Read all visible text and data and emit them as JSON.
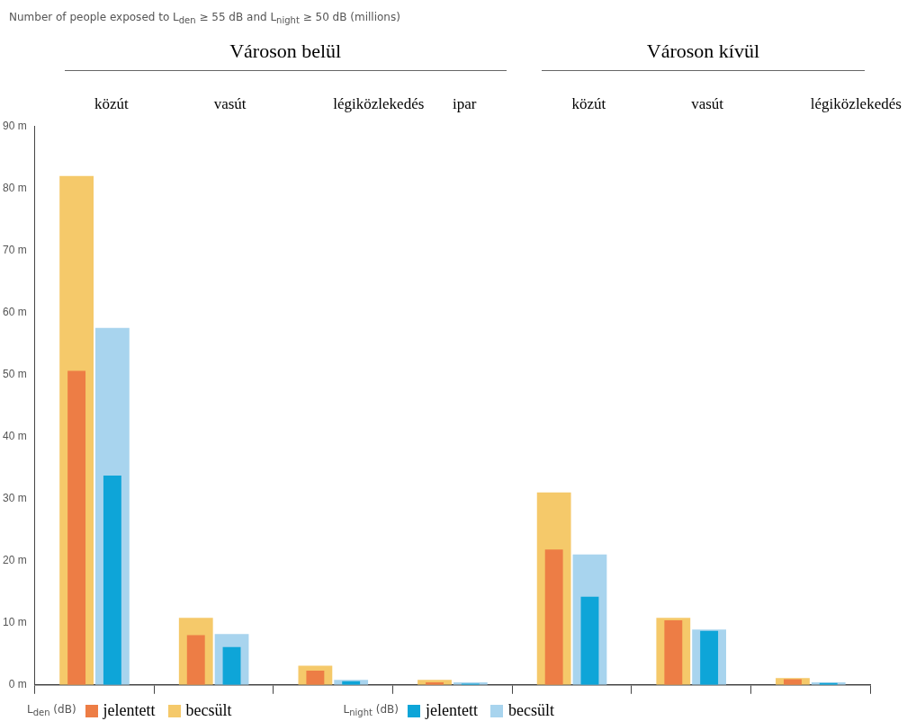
{
  "chart_data": {
    "type": "bar",
    "title": "Number of people exposed to L$_{den}$ ≥ 55 dB and L$_{night}$ ≥ 50 dB (millions)",
    "categories": [
      "közút",
      "vasút",
      "légiközlekedés",
      "ipar",
      "közút",
      "vasút",
      "légiközlekedés"
    ],
    "series": [
      {
        "name": "jelentett",
        "color": "#ed7d45",
        "values": [
          50.6,
          8.0,
          2.3,
          0.4,
          21.8,
          10.4,
          0.9
        ]
      },
      {
        "name": "becsült",
        "color": "#f5c96a",
        "values": [
          82.0,
          10.8,
          3.1,
          0.8,
          31.0,
          10.8,
          1.1
        ]
      },
      {
        "name": "jelentett",
        "color": "#0ea5d8",
        "values": [
          33.7,
          6.1,
          0.6,
          0.2,
          14.2,
          8.7,
          0.3
        ]
      },
      {
        "name": "becsült",
        "color": "#a8d4ee",
        "values": [
          57.5,
          8.2,
          0.8,
          0.4,
          21.0,
          8.9,
          0.4
        ]
      }
    ],
    "annotations": [
      "Városon belül",
      "Városon kívül",
      "L$_{den}$ (dB)",
      "L$_{night}$ (dB)"
    ],
    "ylim": [
      0,
      90
    ],
    "yticks": [
      {
        "value": 0,
        "label": "0 m"
      },
      {
        "value": 10,
        "label": "10 m"
      },
      {
        "value": 20,
        "label": "20 m"
      },
      {
        "value": 30,
        "label": "30 m"
      },
      {
        "value": 40,
        "label": "40 m"
      },
      {
        "value": 50,
        "label": "50 m"
      },
      {
        "value": 60,
        "label": "60 m"
      },
      {
        "value": 70,
        "label": "70 m"
      },
      {
        "value": 80,
        "label": "80 m"
      },
      {
        "value": 90,
        "label": "90 m"
      }
    ],
    "grid": false,
    "legend": "bottom"
  }
}
